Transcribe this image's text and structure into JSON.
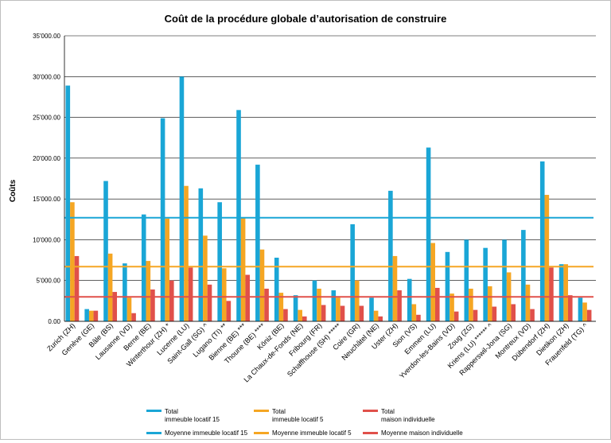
{
  "chart_data": {
    "type": "bar",
    "title": "Coût de la procédure globale d’autorisation de construire",
    "xlabel": "",
    "ylabel": "Coûts",
    "ylim": [
      0,
      35000
    ],
    "yticks": [
      0,
      5000,
      10000,
      15000,
      20000,
      25000,
      30000,
      35000
    ],
    "ytick_labels": [
      "0.00",
      "5'000.00",
      "10'000.00",
      "15'000.00",
      "20'000.00",
      "25'000.00",
      "30'000.00",
      "35'000.00"
    ],
    "grid": true,
    "legend_position": "bottom",
    "categories": [
      "Zurich (ZH)",
      "Genève (GE)",
      "Bâle (BS)",
      "Lausanne (VD)",
      "Berne (BE)",
      "Winterthour (ZH) *",
      "Lucerne (LU)",
      "Saint-Gall (SG) ^",
      "Lugano (TI) **",
      "Bienne (BE) ***",
      "Thoune (BE) ****",
      "Köniz (BE)",
      "La Chaux-de-Fonds (NE)",
      "Fribourg (FR)",
      "Schaffhouse (SH) *****",
      "Coire (GR)",
      "Neuchâtel (NE)",
      "Uster (ZH)",
      "Sion (VS)",
      "Emmen (LU)",
      "Yverdon-les-Bains (VD)",
      "Zoug (ZG)",
      "Kriens (LU) ****** ^",
      "Rapperswil-Jona (SG)",
      "Montreux (VD)",
      "Dübendorf (ZH)",
      "Dietikon (ZH)",
      "Frauenfeld (TG) ^"
    ],
    "series": [
      {
        "name": "Total\nimmeuble locatif 15",
        "color": "#1aa6d6",
        "values": [
          28900,
          1500,
          17200,
          7100,
          13100,
          24900,
          30000,
          16300,
          14600,
          25900,
          19200,
          7800,
          3200,
          5000,
          3800,
          11900,
          2900,
          16000,
          5200,
          21300,
          8500,
          10000,
          9000,
          10000,
          11200,
          19600,
          7000,
          2900
        ]
      },
      {
        "name": "Total\nimmeuble locatif 5",
        "color": "#f5a623",
        "values": [
          14600,
          1300,
          8300,
          2900,
          7400,
          12600,
          16600,
          10500,
          6500,
          12700,
          8800,
          3500,
          1400,
          4000,
          2900,
          5000,
          1300,
          8000,
          2100,
          9600,
          3400,
          4000,
          4300,
          6000,
          4500,
          15500,
          7000,
          2300
        ]
      },
      {
        "name": "Total\nmaison individuelle",
        "color": "#e0504a",
        "values": [
          8000,
          1300,
          3600,
          1000,
          3900,
          5000,
          6600,
          4500,
          2500,
          5700,
          4000,
          1500,
          600,
          2000,
          1900,
          1900,
          600,
          3800,
          800,
          4100,
          1200,
          1400,
          1800,
          2100,
          1500,
          6600,
          3200,
          1400
        ]
      }
    ],
    "averages": [
      {
        "name": "Moyenne immeuble locatif 15",
        "color": "#1aa6d6",
        "value": 12700
      },
      {
        "name": "Moyenne immeuble locatif 5",
        "color": "#f5a623",
        "value": 6700
      },
      {
        "name": "Moyenne maison individuelle",
        "color": "#e0504a",
        "value": 3000
      }
    ]
  }
}
